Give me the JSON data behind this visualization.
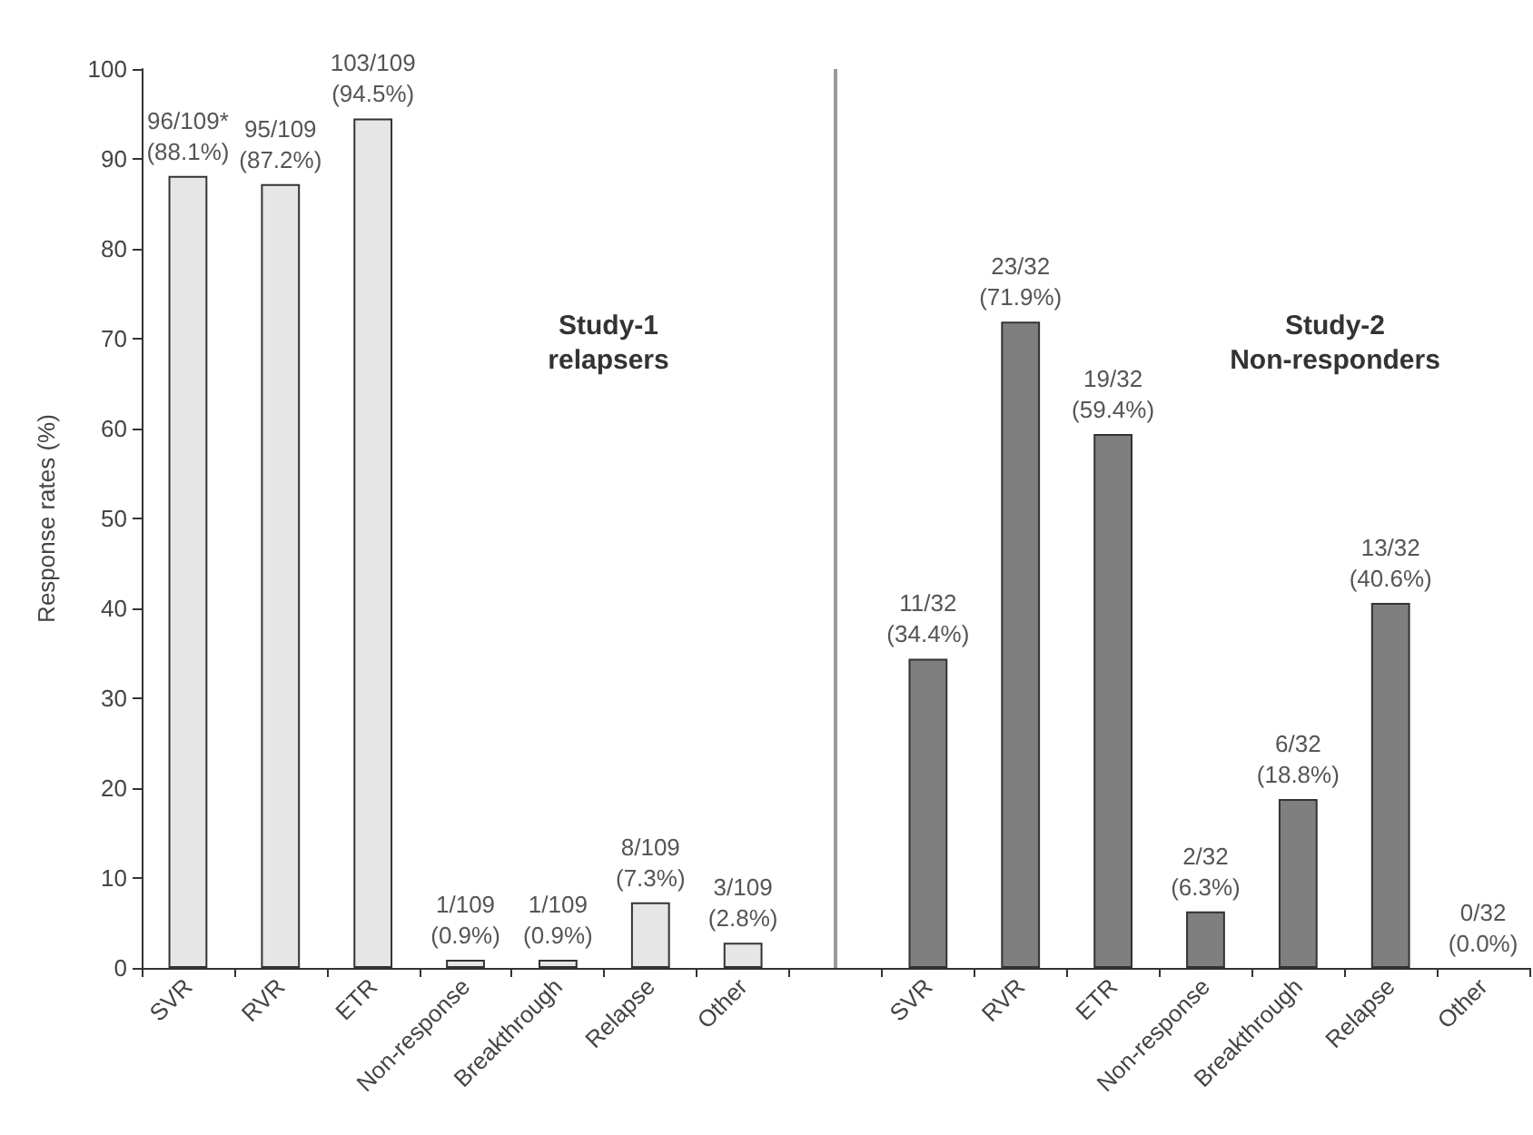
{
  "chart_data": {
    "type": "bar",
    "ylabel": "Response rates (%)",
    "categories": [
      "SVR",
      "RVR",
      "ETR",
      "Non-response",
      "Breakthrough",
      "Relapse",
      "Other",
      null,
      "SVR",
      "RVR",
      "ETR",
      "Non-response",
      "Breakthrough",
      "Relapse",
      "Other"
    ],
    "values": [
      88.1,
      87.2,
      94.5,
      0.9,
      0.9,
      7.3,
      2.8,
      null,
      34.4,
      71.9,
      59.4,
      6.3,
      18.8,
      40.6,
      0.0
    ],
    "colors": [
      "#e6e6e6",
      "#e6e6e6",
      "#e6e6e6",
      "#e6e6e6",
      "#e6e6e6",
      "#e6e6e6",
      "#e6e6e6",
      null,
      "#7f7f7f",
      "#7f7f7f",
      "#7f7f7f",
      "#7f7f7f",
      "#7f7f7f",
      "#7f7f7f",
      "#7f7f7f"
    ],
    "value_labels": [
      "96/109*\n(88.1%)",
      "95/109\n(87.2%)",
      "103/109\n(94.5%)",
      "1/109\n(0.9%)",
      "1/109\n(0.9%)",
      "8/109\n(7.3%)",
      "3/109\n(2.8%)",
      null,
      "11/32\n(34.4%)",
      "23/32\n(71.9%)",
      "19/32\n(59.4%)",
      "2/32\n(6.3%)",
      "6/32\n(18.8%)",
      "13/32\n(40.6%)",
      "0/32\n(0.0%)"
    ],
    "ylim": [
      0,
      100
    ],
    "yticks": [
      0,
      10,
      20,
      30,
      40,
      50,
      60,
      70,
      80,
      90,
      100
    ],
    "annotations": [
      "Study-1\nrelapsers",
      "Study-2\nNon-responders"
    ]
  }
}
